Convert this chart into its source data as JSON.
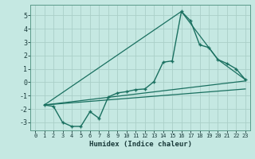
{
  "xlabel": "Humidex (Indice chaleur)",
  "xlim": [
    -0.5,
    23.5
  ],
  "ylim": [
    -3.6,
    5.8
  ],
  "yticks": [
    -3,
    -2,
    -1,
    0,
    1,
    2,
    3,
    4,
    5
  ],
  "xticks": [
    0,
    1,
    2,
    3,
    4,
    5,
    6,
    7,
    8,
    9,
    10,
    11,
    12,
    13,
    14,
    15,
    16,
    17,
    18,
    19,
    20,
    21,
    22,
    23
  ],
  "background_color": "#c5e8e2",
  "grid_color": "#aacfc8",
  "line_color": "#1a7060",
  "curve_x": [
    1,
    2,
    3,
    4,
    5,
    6,
    7,
    8,
    9,
    10,
    11,
    12,
    13,
    14,
    15,
    16,
    17,
    18,
    19,
    20,
    21,
    22,
    23
  ],
  "curve_y": [
    -1.7,
    -1.8,
    -3.0,
    -3.3,
    -3.3,
    -2.2,
    -2.7,
    -1.1,
    -0.8,
    -0.7,
    -0.55,
    -0.5,
    0.05,
    1.5,
    1.6,
    5.3,
    4.6,
    2.8,
    2.6,
    1.7,
    1.4,
    1.0,
    0.2
  ],
  "line1_x": [
    1,
    16,
    20,
    23
  ],
  "line1_y": [
    -1.7,
    5.3,
    1.7,
    0.2
  ],
  "line2_x": [
    1,
    23
  ],
  "line2_y": [
    -1.7,
    0.1
  ],
  "line3_x": [
    1,
    23
  ],
  "line3_y": [
    -1.7,
    -0.5
  ]
}
